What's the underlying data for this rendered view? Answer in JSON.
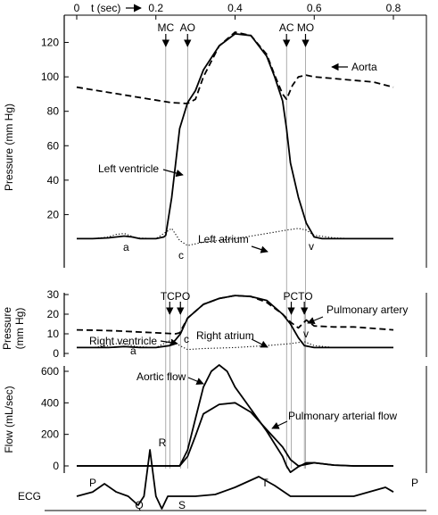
{
  "chart_data": {
    "type": "line",
    "time_axis": {
      "label": "t (sec)",
      "ticks": [
        0,
        0.2,
        0.4,
        0.6,
        0.8
      ],
      "tick_labels": [
        "0",
        "0.2",
        "0.4",
        "0.6",
        "0.8"
      ],
      "xlim": [
        0,
        0.8
      ]
    },
    "panels": [
      {
        "id": "left-heart",
        "ylabel": "Pressure (mm Hg)",
        "ylim": [
          0,
          130
        ],
        "yticks": [
          20,
          40,
          60,
          80,
          100,
          120
        ],
        "events": [
          {
            "label": "MC",
            "t": 0.225
          },
          {
            "label": "AO",
            "t": 0.28
          },
          {
            "label": "AC",
            "t": 0.53
          },
          {
            "label": "MO",
            "t": 0.578
          }
        ],
        "series": [
          {
            "name": "Aorta",
            "style": "dashed",
            "x": [
              0.0,
              0.04,
              0.08,
              0.12,
              0.16,
              0.2,
              0.24,
              0.28,
              0.3,
              0.32,
              0.36,
              0.4,
              0.44,
              0.48,
              0.5,
              0.52,
              0.53,
              0.545,
              0.56,
              0.58,
              0.6,
              0.65,
              0.7,
              0.75,
              0.8
            ],
            "y": [
              94,
              92.5,
              91,
              89.5,
              88,
              86.5,
              85,
              84.5,
              87,
              100,
              118,
              126,
              124,
              113,
              101,
              90,
              87,
              95,
              100,
              101,
              100,
              99,
              98,
              97,
              94
            ]
          },
          {
            "name": "Left ventricle",
            "style": "solid",
            "x": [
              0.0,
              0.04,
              0.08,
              0.1,
              0.12,
              0.14,
              0.16,
              0.2,
              0.22,
              0.225,
              0.24,
              0.26,
              0.28,
              0.3,
              0.32,
              0.36,
              0.4,
              0.44,
              0.48,
              0.5,
              0.52,
              0.53,
              0.54,
              0.56,
              0.58,
              0.6,
              0.62,
              0.65,
              0.7,
              0.75,
              0.8
            ],
            "y": [
              6,
              6,
              6.5,
              7,
              7.5,
              7,
              6,
              6,
              7,
              8,
              30,
              70,
              85,
              92,
              104,
              118,
              125,
              124,
              112,
              100,
              86,
              70,
              50,
              30,
              15,
              7,
              6,
              6,
              6,
              6,
              6
            ]
          },
          {
            "name": "Left atrium",
            "style": "dotted",
            "x": [
              0.0,
              0.04,
              0.08,
              0.1,
              0.12,
              0.15,
              0.2,
              0.22,
              0.24,
              0.26,
              0.28,
              0.32,
              0.4,
              0.48,
              0.53,
              0.56,
              0.58,
              0.6,
              0.65,
              0.7,
              0.8
            ],
            "y": [
              6,
              6,
              7,
              8.5,
              9,
              6.5,
              6,
              9,
              12,
              5,
              2,
              4,
              6,
              9,
              11,
              12,
              11,
              8,
              6.5,
              6,
              6
            ]
          }
        ],
        "annotations": [
          "Aorta",
          "Left ventricle",
          "Left atrium",
          "a",
          "c",
          "v"
        ]
      },
      {
        "id": "right-heart",
        "ylabel": "Pressure (mm Hg)",
        "ylim": [
          0,
          30
        ],
        "yticks": [
          0,
          10,
          20,
          30
        ],
        "events": [
          {
            "label": "TC",
            "t": 0.235
          },
          {
            "label": "PO",
            "t": 0.262
          },
          {
            "label": "PC",
            "t": 0.542
          },
          {
            "label": "TO",
            "t": 0.575
          }
        ],
        "series": [
          {
            "name": "Pulmonary artery",
            "style": "dashed",
            "x": [
              0.0,
              0.05,
              0.1,
              0.15,
              0.2,
              0.25,
              0.26,
              0.28,
              0.32,
              0.36,
              0.4,
              0.44,
              0.48,
              0.52,
              0.54,
              0.56,
              0.58,
              0.6,
              0.65,
              0.7,
              0.8
            ],
            "y": [
              12,
              11.8,
              11.5,
              11,
              10.5,
              10,
              10.5,
              18,
              25,
              28,
              29.5,
              29,
              26,
              20,
              16,
              13,
              17,
              14,
              13.5,
              13.5,
              12
            ]
          },
          {
            "name": "Right ventricle",
            "style": "solid",
            "x": [
              0.0,
              0.04,
              0.08,
              0.12,
              0.16,
              0.2,
              0.235,
              0.25,
              0.262,
              0.28,
              0.32,
              0.36,
              0.4,
              0.44,
              0.48,
              0.52,
              0.54,
              0.56,
              0.575,
              0.6,
              0.65,
              0.7,
              0.8
            ],
            "y": [
              3,
              3,
              3,
              3.5,
              3,
              3,
              4,
              7,
              10,
              18,
              25,
              28,
              29.5,
              29,
              27,
              20,
              15,
              8,
              4,
              3,
              3,
              3,
              3
            ]
          },
          {
            "name": "Right atrium",
            "style": "dotted",
            "x": [
              0.0,
              0.04,
              0.08,
              0.1,
              0.12,
              0.15,
              0.2,
              0.22,
              0.24,
              0.26,
              0.28,
              0.32,
              0.4,
              0.48,
              0.54,
              0.575,
              0.6,
              0.65,
              0.7,
              0.8
            ],
            "y": [
              3,
              3,
              4,
              5,
              5,
              3.5,
              3,
              5,
              7,
              4,
              2,
              2.5,
              3,
              4,
              5,
              6,
              4,
              3,
              3,
              3
            ]
          }
        ],
        "annotations": [
          "Pulmonary artery",
          "Right ventricle",
          "Right atrium",
          "a",
          "c",
          "v"
        ]
      },
      {
        "id": "flow",
        "ylabel": "Flow (mL/sec)",
        "ylim": [
          -50,
          650
        ],
        "yticks": [
          0,
          200,
          400,
          600
        ],
        "series": [
          {
            "name": "Aortic flow",
            "style": "solid",
            "x": [
              0.0,
              0.1,
              0.2,
              0.26,
              0.28,
              0.3,
              0.32,
              0.34,
              0.36,
              0.38,
              0.4,
              0.44,
              0.48,
              0.52,
              0.53,
              0.54,
              0.56,
              0.58,
              0.6,
              0.65,
              0.7,
              0.8
            ],
            "y": [
              0,
              0,
              0,
              0,
              100,
              300,
              500,
              600,
              640,
              600,
              500,
              360,
              220,
              60,
              0,
              -40,
              -5,
              20,
              20,
              5,
              0,
              0
            ]
          },
          {
            "name": "Pulmonary arterial flow",
            "style": "solid",
            "x": [
              0.0,
              0.1,
              0.2,
              0.26,
              0.28,
              0.3,
              0.32,
              0.36,
              0.4,
              0.44,
              0.48,
              0.52,
              0.54,
              0.56,
              0.58,
              0.6,
              0.65,
              0.7,
              0.8
            ],
            "y": [
              0,
              0,
              0,
              0,
              60,
              190,
              330,
              390,
              400,
              340,
              230,
              120,
              40,
              0,
              10,
              20,
              5,
              0,
              0
            ]
          }
        ],
        "annotations": [
          "Aortic flow",
          "Pulmonary arterial flow"
        ]
      },
      {
        "id": "ecg",
        "ylabel": "ECG",
        "waves": [
          "P",
          "Q",
          "R",
          "S",
          "T",
          "P"
        ],
        "series": [
          {
            "name": "ECG",
            "style": "solid",
            "x": [
              0.0,
              0.04,
              0.07,
              0.1,
              0.13,
              0.155,
              0.17,
              0.185,
              0.2,
              0.215,
              0.23,
              0.26,
              0.3,
              0.35,
              0.4,
              0.46,
              0.5,
              0.54,
              0.6,
              0.7,
              0.78,
              0.8
            ],
            "y": [
              0,
              0.12,
              0.35,
              0.12,
              0,
              -0.25,
              0,
              1.3,
              0,
              -0.35,
              0,
              0,
              0,
              0.05,
              0.25,
              0.55,
              0.3,
              0,
              0,
              0,
              0.25,
              0.12
            ]
          }
        ]
      }
    ]
  }
}
